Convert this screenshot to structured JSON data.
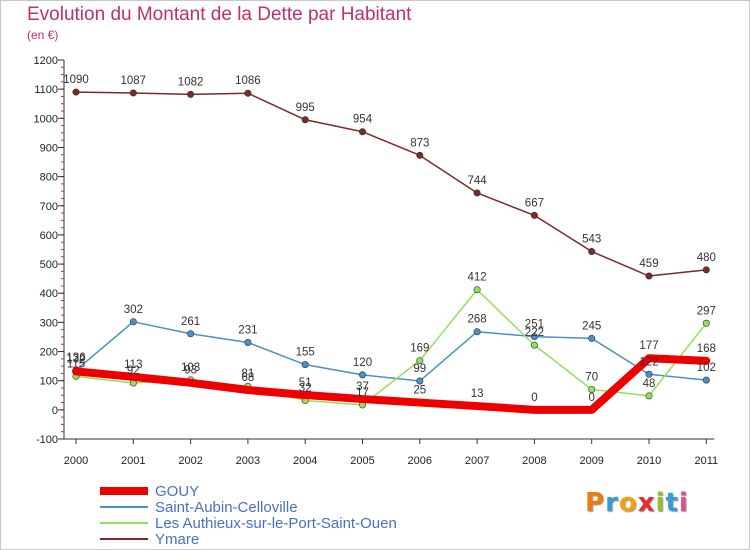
{
  "header": {
    "title": "Evolution du Montant de la Dette par Habitant",
    "unit": "(en €)"
  },
  "legend": {
    "items": [
      {
        "label": "GOUY",
        "color": "#ee0000",
        "thickness": 8
      },
      {
        "label": "Saint-Aubin-Celloville",
        "color": "#4a90c8",
        "thickness": 2
      },
      {
        "label": "Les Authieux-sur-le-Port-Saint-Ouen",
        "color": "#90e060",
        "thickness": 2
      },
      {
        "label": "Ymare",
        "color": "#7a2a2a",
        "thickness": 2
      }
    ]
  },
  "logo": {
    "letters": [
      "P",
      "r",
      "o",
      "x",
      "i",
      "t",
      "i"
    ],
    "colors": [
      "#f07a10",
      "#3a9ad8",
      "#f0a010",
      "#e03030",
      "#90c030",
      "#3a9ad8",
      "#e05090"
    ]
  },
  "chart_data": {
    "type": "line",
    "title": "Evolution du Montant de la Dette par Habitant",
    "ylabel": "(en €)",
    "xlabel": "",
    "categories": [
      "2000",
      "2001",
      "2002",
      "2003",
      "2004",
      "2005",
      "2006",
      "2007",
      "2008",
      "2009",
      "2010",
      "2011"
    ],
    "ylim": [
      -100,
      1200
    ],
    "yticks": [
      -100,
      0,
      100,
      200,
      300,
      400,
      500,
      600,
      700,
      800,
      900,
      1000,
      1100,
      1200
    ],
    "grid": false,
    "legend_position": "bottom-left",
    "series": [
      {
        "name": "Ymare",
        "color": "#7a2a2a",
        "width": 1.5,
        "values": [
          1090,
          1087,
          1082,
          1086,
          995,
          954,
          873,
          744,
          667,
          543,
          459,
          480
        ]
      },
      {
        "name": "Saint-Aubin-Celloville",
        "color": "#4a90c8",
        "width": 1.5,
        "values": [
          136,
          302,
          261,
          231,
          155,
          120,
          99,
          268,
          251,
          245,
          122,
          102
        ]
      },
      {
        "name": "Les Authieux-sur-le-Port-Saint-Ouen",
        "color": "#90e060",
        "width": 1.5,
        "values": [
          115,
          92,
          103,
          81,
          32,
          17,
          169,
          412,
          222,
          70,
          48,
          297
        ]
      },
      {
        "name": "GOUY",
        "color": "#ee0000",
        "width": 8,
        "values": [
          132,
          113,
          93,
          68,
          51,
          37,
          25,
          13,
          0,
          0,
          177,
          168
        ]
      }
    ]
  }
}
